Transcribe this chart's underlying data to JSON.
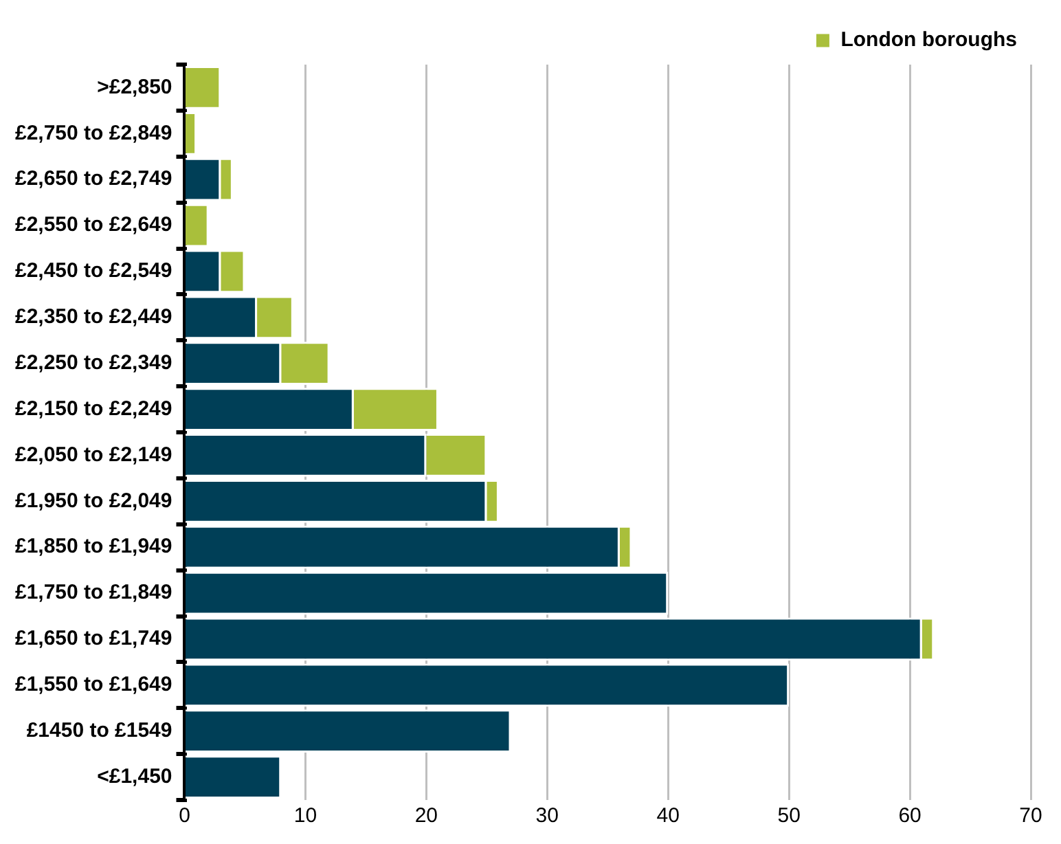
{
  "chart_data": {
    "type": "bar",
    "orientation": "horizontal",
    "stacked": true,
    "categories": [
      ">£2,850",
      "£2,750 to £2,849",
      "£2,650 to £2,749",
      "£2,550 to £2,649",
      "£2,450 to £2,549",
      "£2,350 to £2,449",
      "£2,250 to £2,349",
      "£2,150 to £2,249",
      "£2,050 to £2,149",
      "£1,950 to £2,049",
      "£1,850 to £1,949",
      "£1,750 to £1,849",
      "£1,650 to £1,749",
      "£1,550 to £1,649",
      "£1450 to £1549",
      "<£1,450"
    ],
    "series": [
      {
        "color": "#003f57",
        "values": [
          0,
          0,
          3,
          0,
          3,
          6,
          8,
          14,
          20,
          25,
          36,
          40,
          61,
          50,
          27,
          8
        ]
      },
      {
        "name": "London boroughs",
        "color": "#a9bf3b",
        "values": [
          3,
          1,
          1,
          2,
          2,
          3,
          4,
          7,
          5,
          1,
          1,
          0,
          1,
          0,
          0,
          0
        ]
      }
    ],
    "xlim": [
      0,
      70
    ],
    "xticks": [
      0,
      10,
      20,
      30,
      40,
      50,
      60,
      70
    ],
    "grid": "x",
    "legend": "top right"
  }
}
